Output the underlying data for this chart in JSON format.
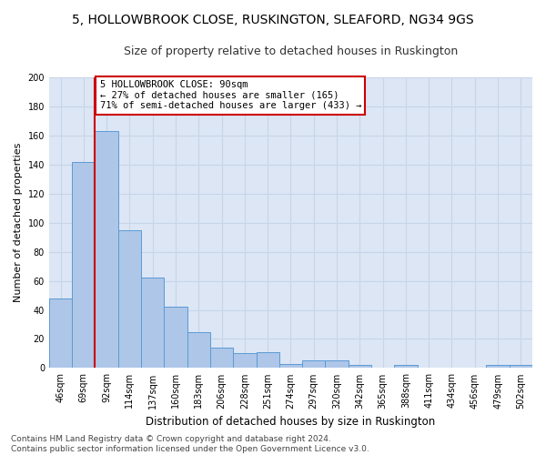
{
  "title": "5, HOLLOWBROOK CLOSE, RUSKINGTON, SLEAFORD, NG34 9GS",
  "subtitle": "Size of property relative to detached houses in Ruskington",
  "xlabel": "Distribution of detached houses by size in Ruskington",
  "ylabel": "Number of detached properties",
  "categories": [
    "46sqm",
    "69sqm",
    "92sqm",
    "114sqm",
    "137sqm",
    "160sqm",
    "183sqm",
    "206sqm",
    "228sqm",
    "251sqm",
    "274sqm",
    "297sqm",
    "320sqm",
    "342sqm",
    "365sqm",
    "388sqm",
    "411sqm",
    "434sqm",
    "456sqm",
    "479sqm",
    "502sqm"
  ],
  "values": [
    48,
    142,
    163,
    95,
    62,
    42,
    25,
    14,
    10,
    11,
    3,
    5,
    5,
    2,
    0,
    2,
    0,
    0,
    0,
    2,
    2
  ],
  "bar_color": "#aec6e8",
  "bar_edge_color": "#5b9bd5",
  "vline_color": "#cc0000",
  "vline_index": 2,
  "annotation_text": "5 HOLLOWBROOK CLOSE: 90sqm\n← 27% of detached houses are smaller (165)\n71% of semi-detached houses are larger (433) →",
  "annotation_box_color": "#ffffff",
  "annotation_box_edge": "#cc0000",
  "ylim": [
    0,
    200
  ],
  "yticks": [
    0,
    20,
    40,
    60,
    80,
    100,
    120,
    140,
    160,
    180,
    200
  ],
  "grid_color": "#c8d4e8",
  "bg_color": "#dce6f5",
  "footer": "Contains HM Land Registry data © Crown copyright and database right 2024.\nContains public sector information licensed under the Open Government Licence v3.0.",
  "title_fontsize": 10,
  "subtitle_fontsize": 9,
  "xlabel_fontsize": 8.5,
  "ylabel_fontsize": 8,
  "tick_fontsize": 7,
  "footer_fontsize": 6.5,
  "annotation_fontsize": 7.5
}
